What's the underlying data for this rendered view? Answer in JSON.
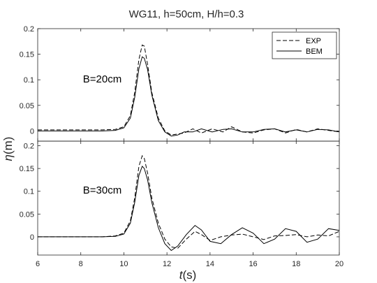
{
  "title": "WG11, h=50cm, H/h=0.3",
  "xlabel_italic": "t",
  "xlabel_unit": "(s)",
  "ylabel_italic": "η",
  "ylabel_unit": "(m)",
  "chart_data": [
    {
      "type": "line",
      "annotation": "B=20cm",
      "xlim": [
        6,
        20
      ],
      "ylim": [
        -0.02,
        0.2
      ],
      "xticks": [
        6,
        8,
        10,
        12,
        14,
        16,
        18,
        20
      ],
      "yticks": [
        0,
        0.05,
        0.1,
        0.15,
        0.2
      ],
      "ytick_labels": [
        "0",
        "0.05",
        "0.1",
        "0.15",
        "0.2"
      ],
      "legend": {
        "position": "top-right",
        "entries": [
          "EXP",
          "BEM"
        ]
      },
      "series": [
        {
          "name": "EXP",
          "style": "dashed",
          "x": [
            6,
            9,
            9.6,
            10,
            10.3,
            10.5,
            10.7,
            10.85,
            10.95,
            11.1,
            11.3,
            11.6,
            11.9,
            12.2,
            12.5,
            12.8,
            13.2,
            13.6,
            14.1,
            14.6,
            15.0,
            15.5,
            16.0,
            16.5,
            17.0,
            17.5,
            18.0,
            18.5,
            19.0,
            19.5,
            20
          ],
          "y": [
            0.002,
            0.002,
            0.003,
            0.008,
            0.03,
            0.075,
            0.14,
            0.168,
            0.166,
            0.13,
            0.075,
            0.025,
            0.0,
            -0.008,
            -0.006,
            -0.004,
            0.004,
            -0.004,
            0.004,
            -0.002,
            0.008,
            -0.002,
            -0.004,
            0.002,
            0.004,
            -0.004,
            0.003,
            -0.002,
            0.004,
            0.001,
            -0.002
          ]
        },
        {
          "name": "BEM",
          "style": "solid",
          "x": [
            6,
            9,
            9.6,
            10,
            10.3,
            10.5,
            10.7,
            10.85,
            10.95,
            11.1,
            11.3,
            11.6,
            11.9,
            12.2,
            12.5,
            12.8,
            13.2,
            13.6,
            14.1,
            14.6,
            15.0,
            15.5,
            16.0,
            16.5,
            17.0,
            17.5,
            18.0,
            18.5,
            19.0,
            19.5,
            20
          ],
          "y": [
            0.0,
            0.0,
            0.001,
            0.006,
            0.025,
            0.065,
            0.122,
            0.145,
            0.142,
            0.12,
            0.07,
            0.02,
            -0.002,
            -0.01,
            -0.008,
            -0.002,
            -0.002,
            0.004,
            -0.002,
            0.003,
            0.004,
            -0.002,
            -0.002,
            0.003,
            0.004,
            -0.002,
            0.002,
            -0.002,
            0.003,
            0.002,
            -0.002
          ]
        }
      ]
    },
    {
      "type": "line",
      "annotation": "B=30cm",
      "xlim": [
        6,
        20
      ],
      "ylim": [
        -0.04,
        0.21
      ],
      "xticks": [
        6,
        8,
        10,
        12,
        14,
        16,
        18,
        20
      ],
      "yticks": [
        0,
        0.05,
        0.1,
        0.15,
        0.2
      ],
      "ytick_labels": [
        "0",
        "0.05",
        "0.1",
        "0.15",
        "0.2"
      ],
      "xtick_labels": [
        "6",
        "8",
        "10",
        "12",
        "14",
        "16",
        "18",
        "20"
      ],
      "series": [
        {
          "name": "EXP",
          "style": "dashed",
          "x": [
            6,
            9,
            9.6,
            10,
            10.3,
            10.5,
            10.7,
            10.85,
            10.95,
            11.1,
            11.3,
            11.6,
            11.9,
            12.2,
            12.5,
            12.9,
            13.3,
            13.6,
            14.0,
            14.5,
            15.0,
            15.5,
            16.0,
            16.5,
            17.0,
            17.5,
            18.0,
            18.5,
            19.0,
            19.5,
            20
          ],
          "y": [
            0.0,
            0.0,
            0.002,
            0.008,
            0.035,
            0.085,
            0.155,
            0.178,
            0.172,
            0.14,
            0.085,
            0.03,
            -0.005,
            -0.022,
            -0.025,
            -0.005,
            0.012,
            0.005,
            -0.008,
            0.0,
            0.004,
            0.006,
            0.0,
            -0.006,
            0.002,
            0.003,
            0.005,
            0.0,
            0.004,
            0.002,
            0.012
          ]
        },
        {
          "name": "BEM",
          "style": "solid",
          "x": [
            6,
            9,
            9.6,
            10,
            10.3,
            10.5,
            10.7,
            10.85,
            10.95,
            11.1,
            11.3,
            11.6,
            11.9,
            12.2,
            12.5,
            12.9,
            13.3,
            13.6,
            14.0,
            14.5,
            15.0,
            15.5,
            16.0,
            16.5,
            17.0,
            17.5,
            18.0,
            18.5,
            19.0,
            19.5,
            20
          ],
          "y": [
            0.0,
            0.0,
            0.001,
            0.006,
            0.03,
            0.075,
            0.135,
            0.155,
            0.15,
            0.125,
            0.075,
            0.02,
            -0.015,
            -0.03,
            -0.02,
            0.005,
            0.025,
            0.015,
            -0.01,
            -0.015,
            0.005,
            0.02,
            0.008,
            -0.015,
            -0.005,
            0.018,
            0.012,
            -0.012,
            -0.005,
            0.018,
            0.014
          ]
        }
      ]
    }
  ]
}
